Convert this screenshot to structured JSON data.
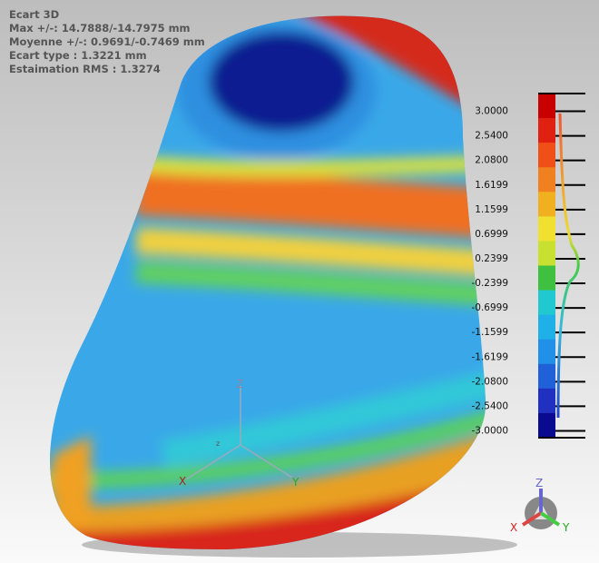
{
  "header": {
    "title": "Ecart 3D",
    "lines": [
      "Max +/-: 14.7888/-14.7975 mm",
      "Moyenne +/-: 0.9691/-0.7469 mm",
      "Ecart type : 1.3221 mm",
      "Estaimation RMS : 1.3274"
    ]
  },
  "color_scale": {
    "labels": [
      "3.0000",
      "2.5400",
      "2.0800",
      "1.6199",
      "1.1599",
      "0.6999",
      "0.2399",
      "-0.2399",
      "-0.6999",
      "-1.1599",
      "-1.6199",
      "-2.0800",
      "-2.5400",
      "-3.0000"
    ]
  },
  "triad": {
    "z": "Z",
    "x": "X",
    "y": "Y",
    "origin": "z"
  },
  "gizmo": {
    "z": "Z",
    "x": "X",
    "y": "Y"
  }
}
